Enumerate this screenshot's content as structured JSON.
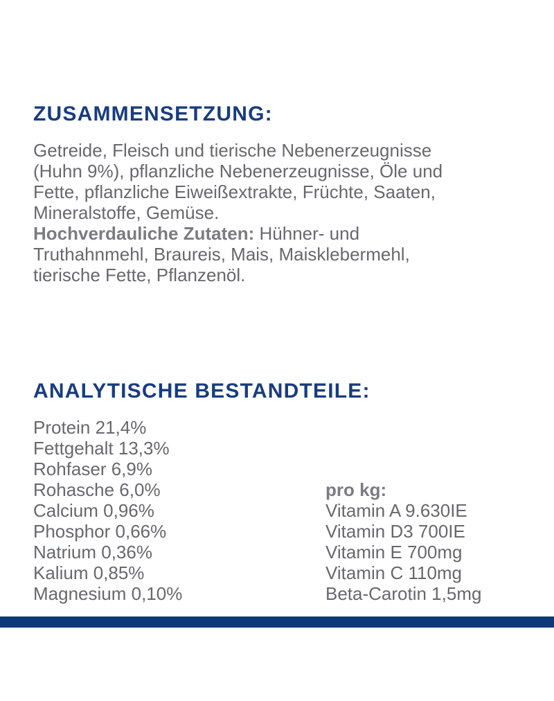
{
  "colors": {
    "navy": "#183C7E",
    "gray": "#66686D",
    "grayBold": "#7B7C80",
    "bar": "#0F3878"
  },
  "composition": {
    "heading": "ZUSAMMENSETZUNG:",
    "lines": [
      "Getreide, Fleisch und tierische Nebenerzeugnisse",
      "(Huhn 9%), pflanzliche Nebenerzeugnisse, Öle und",
      "Fette, pflanzliche Eiweißextrakte, Früchte, Saaten,",
      "Mineralstoffe, Gemüse."
    ],
    "highlight_label": "Hochverdauliche Zutaten:",
    "highlight_lines": [
      "Hühner- und",
      "Truthahnmehl, Braureis, Mais, Maisklebermehl,",
      "tierische Fette, Pflanzenöl."
    ]
  },
  "analytical": {
    "heading": "ANALYTISCHE BESTANDTEILE:",
    "nutrients": [
      "Protein 21,4%",
      "Fettgehalt 13,3%",
      "Rohfaser 6,9%",
      "Rohasche 6,0%",
      "Calcium 0,96%",
      "Phosphor 0,66%",
      "Natrium 0,36%",
      "Kalium 0,85%",
      "Magnesium 0,10%"
    ],
    "per_kg_label": "pro kg:",
    "vitamins": [
      "Vitamin A 9.630IE",
      "Vitamin D3 700IE",
      "Vitamin E 700mg",
      "Vitamin C 110mg",
      "Beta-Carotin 1,5mg"
    ]
  }
}
